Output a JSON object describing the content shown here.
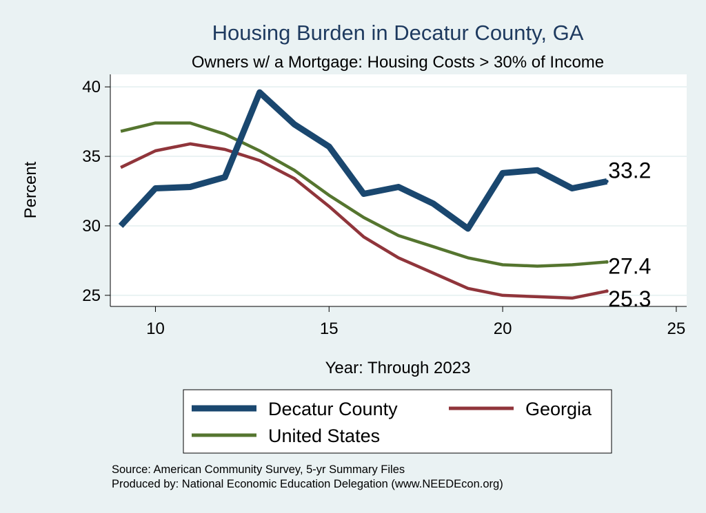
{
  "chart_data": {
    "type": "line",
    "title": "Housing Burden in Decatur County, GA",
    "subtitle": "Owners w/ a Mortgage: Housing Costs > 30% of Income",
    "xlabel": "Year: Through 2023",
    "ylabel": "Percent",
    "xlim": [
      8.7,
      25.3
    ],
    "ylim": [
      24.2,
      40.9
    ],
    "xticks": [
      10,
      15,
      20,
      25
    ],
    "yticks": [
      25,
      30,
      35,
      40
    ],
    "grid": true,
    "x": [
      9,
      10,
      11,
      12,
      13,
      14,
      15,
      16,
      17,
      18,
      19,
      20,
      21,
      22,
      23
    ],
    "series": [
      {
        "name": "Decatur County",
        "color": "#1a476f",
        "values": [
          30.0,
          32.7,
          32.8,
          33.5,
          39.6,
          37.3,
          35.7,
          32.3,
          32.8,
          31.6,
          29.8,
          33.8,
          34.0,
          32.7,
          33.2
        ],
        "end_label": "33.2"
      },
      {
        "name": "Georgia",
        "color": "#90353b",
        "values": [
          34.2,
          35.4,
          35.9,
          35.5,
          34.7,
          33.4,
          31.4,
          29.2,
          27.7,
          26.6,
          25.5,
          25.0,
          24.9,
          24.8,
          25.3
        ],
        "end_label": "25.3"
      },
      {
        "name": "United States",
        "color": "#55752f",
        "values": [
          36.8,
          37.4,
          37.4,
          36.6,
          35.4,
          34.0,
          32.2,
          30.6,
          29.3,
          28.5,
          27.7,
          27.2,
          27.1,
          27.2,
          27.4
        ],
        "end_label": "27.4"
      }
    ],
    "notes": [
      "Source: American Community Survey, 5-yr Summary Files",
      "Produced by: National Economic Education Delegation (www.NEEDEcon.org)"
    ]
  }
}
